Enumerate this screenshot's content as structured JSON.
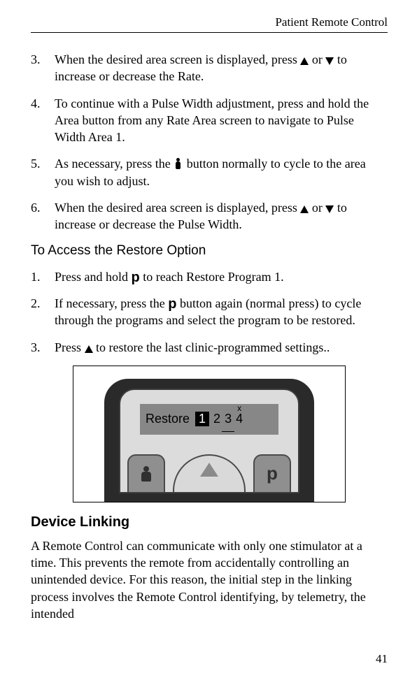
{
  "running_head": "Patient Remote Control",
  "page_number": "41",
  "list_a": [
    {
      "n": "3.",
      "pre": "When the desired area screen is displayed, press ",
      "mid": " or ",
      "post": " to increase or decrease the Rate."
    },
    {
      "n": "4.",
      "text": "To continue with a Pulse Width adjustment, press and hold the Area button from any Rate Area screen to navigate to Pulse Width Area 1."
    },
    {
      "n": "5.",
      "pre": "As necessary, press the ",
      "post": "  button normally to cycle to the area you wish to adjust."
    },
    {
      "n": "6.",
      "pre": "When the desired area screen is displayed, press ",
      "mid": " or ",
      "post": " to increase or decrease the Pulse Width."
    }
  ],
  "subhead_restore": "To Access the Restore Option",
  "list_b": [
    {
      "n": "1.",
      "pre": "Press and hold ",
      "post": " to reach Restore Program 1."
    },
    {
      "n": "2.",
      "pre": "If necessary, press the ",
      "post": " button again (normal press) to cycle through the programs and select the program to be restored."
    },
    {
      "n": "3.",
      "pre": "Press ",
      "post": " to restore the last clinic-programmed settings.."
    }
  ],
  "figure": {
    "screen_label": "Restore",
    "programs": [
      "1",
      "2",
      "3",
      "4"
    ],
    "selected_index": 0,
    "struck_index": 2,
    "x_index": 3,
    "side_right_label": "p"
  },
  "section_linking": "Device Linking",
  "linking_para": "A Remote Control can communicate with only one stimulator at a time. This prevents the remote from accidentally controlling an unintended device. For this reason, the initial step in the linking process involves the Remote Control identifying, by telemetry, the intended"
}
